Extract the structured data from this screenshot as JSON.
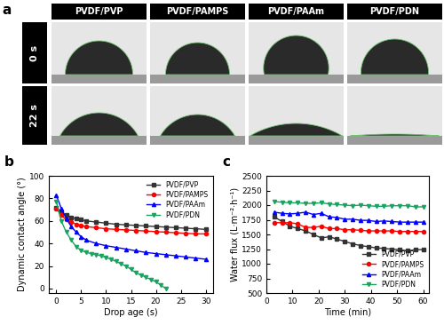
{
  "panel_a": {
    "label": "a",
    "columns": [
      "PVDF/PVP",
      "PVDF/PAMPS",
      "PVDF/PAAm",
      "PVDF/PDN"
    ],
    "rows": [
      "0 s",
      "22 s"
    ]
  },
  "chart_data": [
    {
      "type": "line",
      "title": "b",
      "x_label": "Drop age (s)",
      "y_label": "Dynamic contact angle (°)",
      "xlim": [
        -1.5,
        31.5
      ],
      "xticks": [
        0,
        5,
        10,
        15,
        20,
        25,
        30
      ],
      "ylim": [
        -4,
        100
      ],
      "yticks": [
        0,
        20,
        40,
        60,
        80,
        100
      ],
      "legend": "upper right",
      "series": [
        {
          "name": "PVDF/PVP",
          "color": "#333333",
          "marker": "square",
          "x": [
            0,
            1,
            2,
            3,
            4,
            5,
            6,
            8,
            10,
            12,
            14,
            16,
            18,
            20,
            22,
            24,
            26,
            28,
            30
          ],
          "values": [
            72,
            68,
            65,
            63,
            62,
            61,
            60,
            59,
            58,
            57,
            56.5,
            56,
            55.5,
            55,
            54.5,
            54,
            53.5,
            53,
            52.5
          ]
        },
        {
          "name": "PVDF/PAMPS",
          "color": "#ff0000",
          "marker": "circle",
          "x": [
            0,
            1,
            2,
            3,
            4,
            5,
            6,
            8,
            10,
            12,
            14,
            16,
            18,
            20,
            22,
            24,
            26,
            28,
            30
          ],
          "values": [
            71,
            65,
            61,
            59,
            57,
            56,
            55,
            54,
            53,
            52.5,
            52,
            51.5,
            51,
            50.5,
            50,
            49.5,
            49,
            48.5,
            48.5
          ]
        },
        {
          "name": "PVDF/PAAm",
          "color": "#0000ff",
          "marker": "triangle_up",
          "x": [
            0,
            1,
            2,
            3,
            4,
            5,
            6,
            8,
            10,
            12,
            14,
            16,
            18,
            20,
            22,
            24,
            26,
            28,
            30
          ],
          "values": [
            83,
            71,
            62,
            55,
            50,
            46,
            43,
            40,
            38,
            36.5,
            35,
            33.5,
            32,
            31,
            30,
            29,
            28,
            27,
            26
          ]
        },
        {
          "name": "PVDF/PDN",
          "color": "#1aa260",
          "marker": "triangle_down",
          "x": [
            0,
            1,
            2,
            3,
            4,
            5,
            6,
            7,
            8,
            9,
            10,
            11,
            12,
            13,
            14,
            15,
            16,
            17,
            18,
            19,
            20,
            21,
            22
          ],
          "values": [
            77,
            60,
            50,
            43,
            37,
            34,
            32,
            31,
            30,
            29,
            27.5,
            26,
            24,
            22,
            20,
            17,
            14,
            12,
            10,
            8,
            6,
            3,
            0
          ]
        }
      ]
    },
    {
      "type": "line",
      "title": "c",
      "x_label": "Time (min)",
      "y_label": "Water flux (L·m⁻²·h⁻¹)",
      "xlim": [
        0,
        62
      ],
      "xticks": [
        0,
        10,
        20,
        30,
        40,
        50,
        60
      ],
      "ylim": [
        500,
        2500
      ],
      "yticks": [
        500,
        750,
        1000,
        1250,
        1500,
        1750,
        2000,
        2250,
        2500
      ],
      "legend": "lower right",
      "series": [
        {
          "name": "PVDF/PVP",
          "color": "#333333",
          "marker": "square",
          "x": [
            3,
            6,
            9,
            12,
            15,
            18,
            21,
            24,
            27,
            30,
            33,
            36,
            39,
            42,
            45,
            48,
            51,
            54,
            57,
            60
          ],
          "values": [
            1800,
            1720,
            1640,
            1600,
            1560,
            1500,
            1440,
            1460,
            1420,
            1380,
            1340,
            1310,
            1290,
            1270,
            1260,
            1250,
            1240,
            1220,
            1240,
            1240
          ]
        },
        {
          "name": "PVDF/PAMPS",
          "color": "#ff0000",
          "marker": "circle",
          "x": [
            3,
            6,
            9,
            12,
            15,
            18,
            21,
            24,
            27,
            30,
            33,
            36,
            39,
            42,
            45,
            48,
            51,
            54,
            57,
            60
          ],
          "values": [
            1700,
            1700,
            1700,
            1680,
            1620,
            1620,
            1640,
            1600,
            1600,
            1580,
            1580,
            1570,
            1560,
            1560,
            1560,
            1560,
            1550,
            1550,
            1550,
            1550
          ]
        },
        {
          "name": "PVDF/PAAm",
          "color": "#0000ff",
          "marker": "triangle_up",
          "x": [
            3,
            6,
            9,
            12,
            15,
            18,
            21,
            24,
            27,
            30,
            33,
            36,
            39,
            42,
            45,
            48,
            51,
            54,
            57,
            60
          ],
          "values": [
            1880,
            1860,
            1850,
            1860,
            1880,
            1840,
            1860,
            1800,
            1790,
            1760,
            1760,
            1740,
            1740,
            1720,
            1730,
            1720,
            1710,
            1710,
            1710,
            1710
          ]
        },
        {
          "name": "PVDF/PDN",
          "color": "#1aa260",
          "marker": "triangle_down",
          "x": [
            3,
            6,
            9,
            12,
            15,
            18,
            21,
            24,
            27,
            30,
            33,
            36,
            39,
            42,
            45,
            48,
            51,
            54,
            57,
            60
          ],
          "values": [
            2060,
            2050,
            2040,
            2040,
            2030,
            2030,
            2040,
            2020,
            2010,
            2000,
            1990,
            2000,
            1990,
            1980,
            1980,
            1990,
            1990,
            1990,
            1970,
            1970
          ]
        }
      ]
    }
  ]
}
